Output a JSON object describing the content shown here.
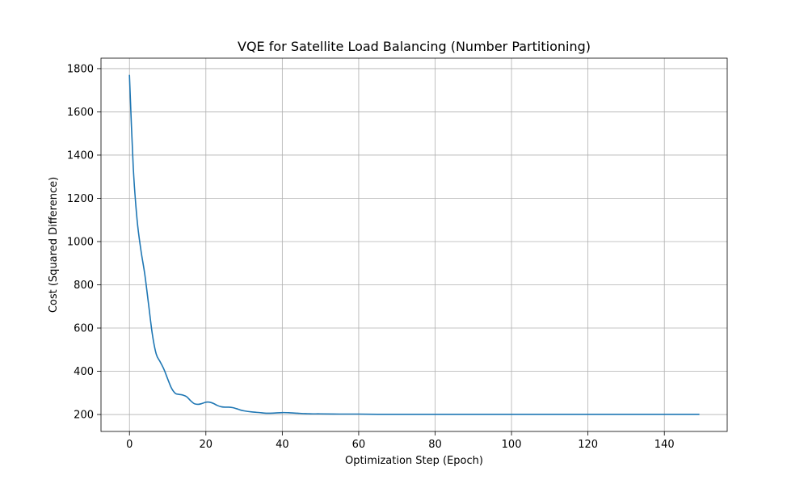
{
  "chart_data": {
    "type": "line",
    "title": "VQE for Satellite Load Balancing (Number Partitioning)",
    "xlabel": "Optimization Step (Epoch)",
    "ylabel": "Cost (Squared Difference)",
    "xlim": [
      -7.45,
      156.45
    ],
    "ylim": [
      121.7,
      1848.3
    ],
    "xticks": [
      0,
      20,
      40,
      60,
      80,
      100,
      120,
      140
    ],
    "yticks": [
      200,
      400,
      600,
      800,
      1000,
      1200,
      1400,
      1600,
      1800
    ],
    "grid": true,
    "legend": "none",
    "series": [
      {
        "color": "#1f77b4",
        "x": [
          0,
          1,
          2,
          3,
          4,
          5,
          6,
          7,
          8,
          9,
          10,
          11,
          12,
          13,
          14,
          15,
          16,
          17,
          18,
          19,
          20,
          21,
          22,
          23,
          24,
          25,
          26,
          27,
          28,
          29,
          30,
          32,
          34,
          36,
          38,
          40,
          42,
          44,
          46,
          48,
          50,
          55,
          60,
          65,
          70,
          80,
          90,
          100,
          110,
          120,
          130,
          140,
          149
        ],
        "y": [
          1768,
          1340,
          1100,
          960,
          850,
          710,
          570,
          480,
          445,
          410,
          365,
          322,
          298,
          293,
          290,
          282,
          264,
          250,
          247,
          251,
          257,
          257,
          251,
          242,
          236,
          234,
          234,
          232,
          227,
          221,
          217,
          212,
          209,
          206,
          207,
          209,
          208,
          206,
          204,
          203,
          203,
          202,
          202,
          201,
          201,
          201,
          201,
          201,
          201,
          201,
          201,
          201,
          201
        ]
      }
    ]
  }
}
